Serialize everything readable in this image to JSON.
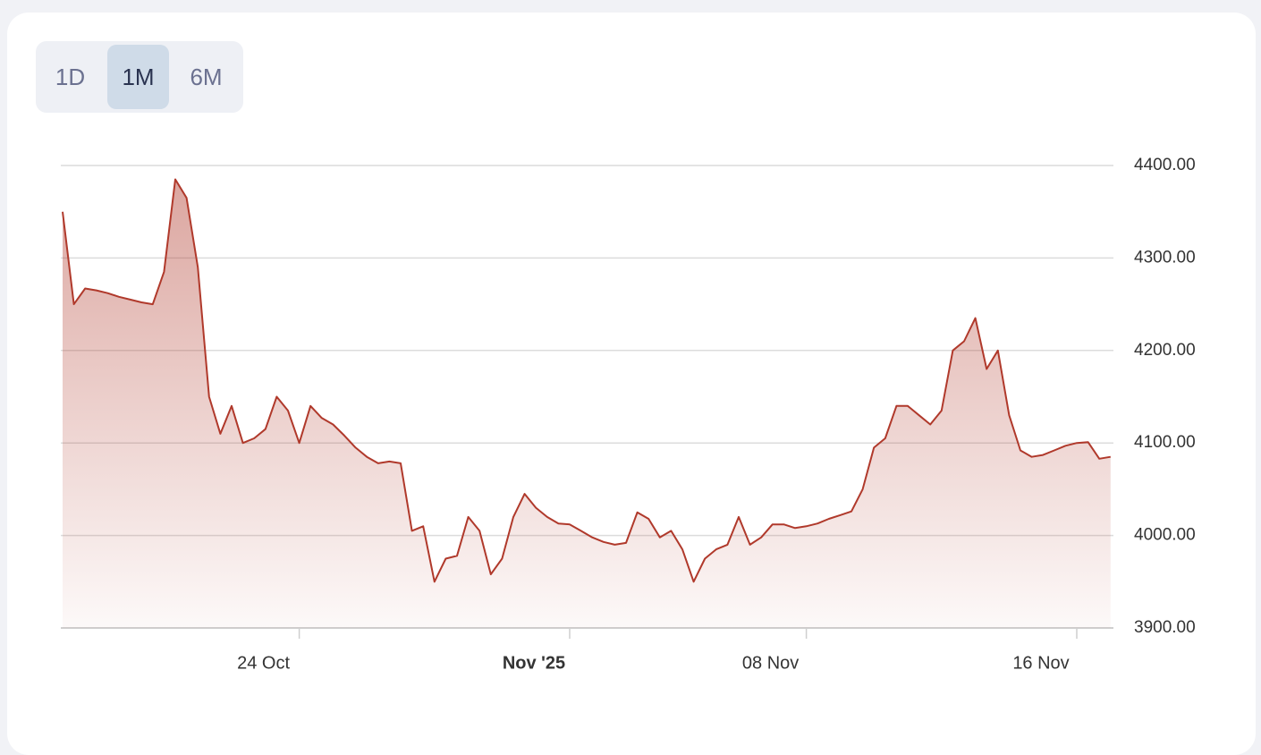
{
  "range_selector": {
    "options": [
      "1D",
      "1M",
      "6M"
    ],
    "active": 1
  },
  "chart_data": {
    "type": "area",
    "color": "#b0392b",
    "categories": [
      null,
      null,
      null,
      null,
      null,
      null,
      null,
      null,
      null,
      null,
      null,
      null,
      null,
      null,
      null,
      null,
      null,
      null,
      null,
      null,
      null,
      "24 Oct",
      null,
      null,
      null,
      null,
      null,
      null,
      null,
      null,
      null,
      null,
      null,
      null,
      null,
      null,
      null,
      null,
      null,
      null,
      null,
      null,
      null,
      null,
      null,
      "Nov '25",
      null,
      null,
      null,
      null,
      null,
      null,
      null,
      null,
      null,
      null,
      null,
      null,
      null,
      null,
      null,
      null,
      null,
      null,
      null,
      null,
      "08 Nov",
      null,
      null,
      null,
      null,
      null,
      null,
      null,
      null,
      null,
      null,
      null,
      null,
      null,
      null,
      null,
      null,
      null,
      null,
      null,
      null,
      null,
      null,
      null,
      "16 Nov",
      null,
      null,
      null
    ],
    "values": [
      4350,
      4250,
      4267,
      4265,
      4262,
      4258,
      4255,
      4252,
      4250,
      4285,
      4385,
      4365,
      4290,
      4150,
      4110,
      4140,
      4100,
      4105,
      4115,
      4150,
      4135,
      4100,
      4140,
      4127,
      4120,
      4108,
      4095,
      4085,
      4078,
      4080,
      4078,
      4005,
      4010,
      3950,
      3975,
      3978,
      4020,
      4005,
      3958,
      3975,
      4020,
      4045,
      4030,
      4020,
      4013,
      4012,
      4005,
      3998,
      3993,
      3990,
      3992,
      4025,
      4018,
      3998,
      4005,
      3985,
      3950,
      3975,
      3985,
      3990,
      4020,
      3990,
      3998,
      4012,
      4012,
      4008,
      4010,
      4013,
      4018,
      4022,
      4026,
      4050,
      4095,
      4105,
      4140,
      4140,
      4130,
      4120,
      4135,
      4200,
      4210,
      4235,
      4180,
      4200,
      4130,
      4092,
      4085,
      4087,
      4092,
      4097,
      4100,
      4101,
      4083,
      4085
    ],
    "ylim": [
      3900,
      4400
    ],
    "yticks": [
      {
        "value": 3900,
        "label": "3900.00"
      },
      {
        "value": 4000,
        "label": "4000.00"
      },
      {
        "value": 4100,
        "label": "4100.00"
      },
      {
        "value": 4200,
        "label": "4200.00"
      },
      {
        "value": 4300,
        "label": "4300.00"
      },
      {
        "value": 4400,
        "label": "4400.00"
      }
    ],
    "grid": true
  }
}
